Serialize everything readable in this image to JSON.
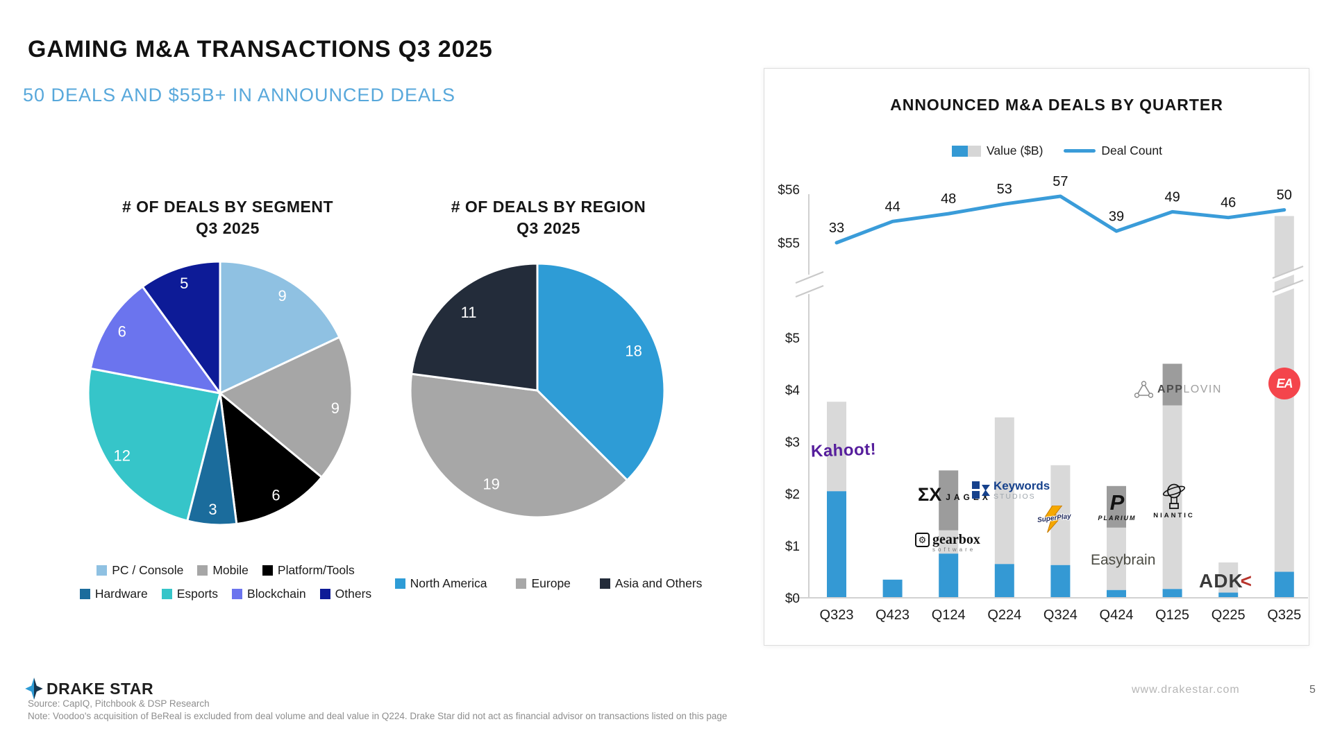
{
  "page": {
    "title": "GAMING M&A TRANSACTIONS Q3 2025",
    "subtitle": "50 DEALS AND $55B+ IN ANNOUNCED DEALS",
    "brand": "DRAKE STAR",
    "source_line": "Source: CapIQ, Pitchbook & DSP Research",
    "note_line": "Note: Voodoo's acquisition of BeReal is excluded from deal volume and deal value in Q224. Drake Star did not act as financial advisor on transactions listed on this page",
    "website": "www.drakestar.com",
    "page_number": "5"
  },
  "chart_data": [
    {
      "type": "pie",
      "title_line1": "# OF DEALS BY SEGMENT",
      "title_line2": "Q3 2025",
      "total": 50,
      "start_angle_deg": 0,
      "legend_rows": [
        [
          0,
          1,
          2
        ],
        [
          3,
          4,
          5,
          6
        ]
      ],
      "segments": [
        {
          "label": "PC / Console",
          "value": 9,
          "color": "#8fc1e2"
        },
        {
          "label": "Mobile",
          "value": 9,
          "color": "#a6a6a6"
        },
        {
          "label": "Platform/Tools",
          "value": 6,
          "color": "#000000"
        },
        {
          "label": "Hardware",
          "value": 3,
          "color": "#1b6c9c"
        },
        {
          "label": "Esports",
          "value": 12,
          "color": "#36c5c9"
        },
        {
          "label": "Blockchain",
          "value": 6,
          "color": "#6b74ee"
        },
        {
          "label": "Others",
          "value": 5,
          "color": "#0d1b97"
        }
      ]
    },
    {
      "type": "pie",
      "title_line1": "# OF DEALS BY REGION",
      "title_line2": "Q3 2025",
      "total": 48,
      "start_angle_deg": 0,
      "legend_rows": [
        [
          0,
          1,
          2
        ]
      ],
      "segments": [
        {
          "label": "North America",
          "value": 18,
          "color": "#2e9cd6"
        },
        {
          "label": "Europe",
          "value": 19,
          "color": "#a7a7a7"
        },
        {
          "label": "Asia and Others",
          "value": 11,
          "color": "#232c3a"
        }
      ]
    },
    {
      "type": "bar+line",
      "title": "ANNOUNCED M&A DEALS BY QUARTER",
      "legend_value_label": "Value ($B)",
      "legend_count_label": "Deal Count",
      "ylabel_units": "$B",
      "y_axis_ticks": [
        "$0",
        "$1",
        "$2",
        "$3",
        "$4",
        "$5",
        "$55",
        "$56"
      ],
      "axis_break": true,
      "categories": [
        "Q323",
        "Q423",
        "Q124",
        "Q224",
        "Q324",
        "Q424",
        "Q125",
        "Q225",
        "Q325"
      ],
      "deal_counts": [
        33,
        44,
        48,
        53,
        57,
        39,
        49,
        46,
        50
      ],
      "bar_color": "#3499d4",
      "bar_color_light": "#d9d9d9",
      "bar_color_dark": "#9c9c9c",
      "line_color": "#3a9cd9",
      "bars": [
        {
          "quarter": "Q323",
          "blue": 2.05,
          "light": 1.72,
          "dark": 0
        },
        {
          "quarter": "Q423",
          "blue": 0.35,
          "light": 0,
          "dark": 0
        },
        {
          "quarter": "Q124",
          "blue": 0.85,
          "light": 0.45,
          "dark": 1.15
        },
        {
          "quarter": "Q224",
          "blue": 0.65,
          "light": 2.82,
          "dark": 0
        },
        {
          "quarter": "Q324",
          "blue": 0.63,
          "light": 1.92,
          "dark": 0
        },
        {
          "quarter": "Q424",
          "blue": 0.15,
          "light": 1.2,
          "dark": 0.8
        },
        {
          "quarter": "Q125",
          "blue": 0.17,
          "light": 3.53,
          "dark": 0.8
        },
        {
          "quarter": "Q225",
          "blue": 0.1,
          "light": 0.58,
          "dark": 0
        },
        {
          "quarter": "Q325",
          "blue": 0.5,
          "light": 55.0,
          "dark": 0,
          "extends_above_break": true
        }
      ],
      "logos": {
        "kahoot": "Kahoot!",
        "jagex_glyph": "ΣΧ",
        "jagex": "JAGEX",
        "gearbox_icon": "⚙",
        "gearbox": "gearbox",
        "gearbox_sub": "software",
        "keywords": "Keywords",
        "keywords_sub": "STUDIOS",
        "superplay": "SuperPlay",
        "plarium_glyph": "P",
        "plarium": "PLARIUM",
        "easybrain": "Easybrain",
        "niantic": "NIANTIC",
        "applovin_bold": "APP",
        "applovin_light": "LOVIN",
        "adk": "ADK",
        "adk_arrow": "<",
        "ea": "EA"
      }
    }
  ]
}
